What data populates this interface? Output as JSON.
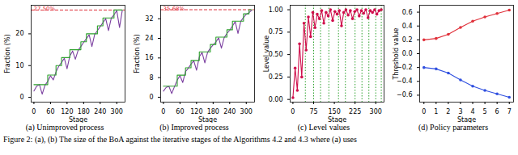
{
  "chart_data": [
    {
      "type": "line",
      "title": "(a) Unimproved process",
      "x_label": "Stage",
      "y_label": "Fraction (%)",
      "x": [
        0,
        10,
        20,
        30,
        40,
        50,
        60,
        70,
        80,
        90,
        100,
        110,
        120,
        130,
        140,
        150,
        160,
        170,
        180,
        190,
        200,
        210,
        220,
        230,
        240,
        250,
        260,
        270,
        280,
        290,
        300,
        310,
        320
      ],
      "series": [
        {
          "type": "line",
          "color": "#7b3fa0",
          "values": [
            2,
            3.5,
            4,
            1,
            3.8,
            5,
            6.8,
            5.5,
            8,
            9.8,
            11,
            12.3,
            9,
            13,
            14.6,
            12,
            14.8,
            16,
            17.3,
            18.5,
            19.7,
            16,
            19.8,
            21,
            22.3,
            23.5,
            24.8,
            21,
            24.9,
            26,
            27.3,
            22,
            27.4
          ]
        },
        {
          "type": "step",
          "color": "#2ca02c",
          "values": [
            4,
            4,
            4,
            4,
            4,
            7,
            7,
            7,
            10,
            10,
            12.5,
            12.5,
            12.5,
            15,
            15,
            15,
            15,
            17.5,
            17.5,
            20,
            20,
            20,
            20,
            22.5,
            22.5,
            25,
            25,
            25,
            25,
            27.5,
            27.5,
            27.5,
            27.5
          ]
        }
      ],
      "annotation": {
        "text": "27.50%",
        "y": 27.5,
        "color": "#e0303a",
        "line_style": "dashed"
      },
      "xlim": [
        -10,
        330
      ],
      "xticks": [
        0,
        60,
        120,
        180,
        240,
        300
      ],
      "ylim": [
        -1.5,
        29
      ],
      "yticks": [
        0,
        10,
        20
      ],
      "grid": false
    },
    {
      "type": "line",
      "title": "(b) Improved process",
      "x_label": "Stage",
      "y_label": "Fraction (%)",
      "x": [
        0,
        10,
        20,
        30,
        40,
        50,
        60,
        70,
        80,
        90,
        100,
        110,
        120,
        130,
        140,
        150,
        160,
        170,
        180,
        190,
        200,
        210,
        220,
        230,
        240,
        250,
        260,
        270,
        280,
        290,
        300,
        310,
        320
      ],
      "series": [
        {
          "type": "line",
          "color": "#7b3fa0",
          "values": [
            2.5,
            4,
            4.4,
            1.5,
            4.3,
            7,
            8.8,
            6,
            10.5,
            11.8,
            13.5,
            14.8,
            11,
            16.5,
            18.2,
            14,
            18.3,
            20,
            21.3,
            22.5,
            24.2,
            20,
            24.3,
            26,
            27.3,
            29,
            30.8,
            26,
            30.9,
            32.5,
            33.8,
            34.5,
            35.5
          ]
        },
        {
          "type": "step",
          "color": "#2ca02c",
          "values": [
            4.5,
            4.5,
            4.5,
            4.5,
            4.5,
            9,
            9,
            9,
            12,
            12,
            15,
            15,
            15,
            18.5,
            18.5,
            18.5,
            18.5,
            21.5,
            21.5,
            24.5,
            24.5,
            24.5,
            24.5,
            27.5,
            27.5,
            31,
            31,
            31,
            31,
            34,
            34,
            35.68,
            35.68
          ]
        }
      ],
      "annotation": {
        "text": "35.68%",
        "y": 35.68,
        "color": "#e0303a",
        "line_style": "dashed"
      },
      "xlim": [
        -10,
        330
      ],
      "xticks": [
        0,
        60,
        120,
        180,
        240,
        300
      ],
      "ylim": [
        -2,
        37.5
      ],
      "yticks": [
        0,
        8,
        16,
        24,
        32
      ],
      "grid": false
    },
    {
      "type": "line",
      "title": "(c) Level values",
      "x_label": "Stage",
      "y_label": "Level value",
      "x": [
        0,
        8,
        16,
        24,
        32,
        40,
        48,
        56,
        64,
        72,
        80,
        88,
        96,
        104,
        112,
        120,
        128,
        136,
        144,
        152,
        160,
        168,
        176,
        184,
        192,
        200,
        208,
        216,
        224,
        232,
        240,
        248,
        256,
        264,
        272,
        280,
        288,
        296,
        304,
        312,
        320
      ],
      "series": [
        {
          "type": "line",
          "color": "#d0104c",
          "marker": "circle",
          "values": [
            0.02,
            0.35,
            0.1,
            0.62,
            0.25,
            0.85,
            0.55,
            0.92,
            0.7,
            0.97,
            0.8,
            0.95,
            0.9,
            0.99,
            0.85,
            0.97,
            0.93,
            1.0,
            0.88,
            0.98,
            0.95,
            0.99,
            0.82,
            0.97,
            1.0,
            0.94,
            0.99,
            0.9,
            0.98,
            1.0,
            0.93,
            0.99,
            0.96,
            1.0,
            0.91,
            0.99,
            0.97,
            1.0,
            0.95,
            0.99,
            1.0
          ]
        }
      ],
      "vlines": {
        "values": [
          45,
          75,
          100,
          130,
          165,
          190,
          225,
          250,
          275,
          300,
          320
        ],
        "color": "#2ca02c",
        "line_style": "dotted"
      },
      "xlim": [
        -10,
        330
      ],
      "xticks": [
        0,
        75,
        150,
        225,
        300
      ],
      "ylim": [
        -0.03,
        1.05
      ],
      "yticks": [
        {
          "value": 0,
          "label": "0.00"
        },
        0.25,
        {
          "value": 0.5,
          "label": "0.50"
        },
        0.75,
        {
          "value": 1,
          "label": "1.00"
        }
      ],
      "grid": false
    },
    {
      "type": "line",
      "title": "(d) Policy parameters",
      "x_label": "Stage",
      "y_label": "Threshold value",
      "x": [
        0,
        1,
        2,
        3,
        4,
        5,
        6,
        7
      ],
      "series": [
        {
          "type": "line",
          "color": "#e0303a",
          "marker": "circle",
          "values": [
            0.2,
            0.22,
            0.28,
            0.38,
            0.47,
            0.53,
            0.58,
            0.63
          ]
        },
        {
          "type": "line",
          "color": "#3050e0",
          "marker": "circle",
          "values": [
            -0.2,
            -0.22,
            -0.28,
            -0.38,
            -0.47,
            -0.53,
            -0.58,
            -0.63
          ]
        }
      ],
      "xlim": [
        -0.35,
        7.35
      ],
      "xticks": [
        0,
        1,
        2,
        3,
        4,
        5,
        6,
        7
      ],
      "ylim": [
        -0.7,
        0.7
      ],
      "yticks": [
        {
          "value": -0.6,
          "label": "−0.6"
        },
        {
          "value": -0.4,
          "label": "−0.4"
        },
        {
          "value": -0.2,
          "label": "−0.2"
        },
        {
          "value": 0,
          "label": "0.0"
        },
        0.2,
        0.4,
        0.6
      ],
      "grid": false
    }
  ],
  "caption": "Figure 2: (a), (b) The size of the BoA against the iterative stages of the Algorithms 4.2 and 4.3 where (a) uses"
}
